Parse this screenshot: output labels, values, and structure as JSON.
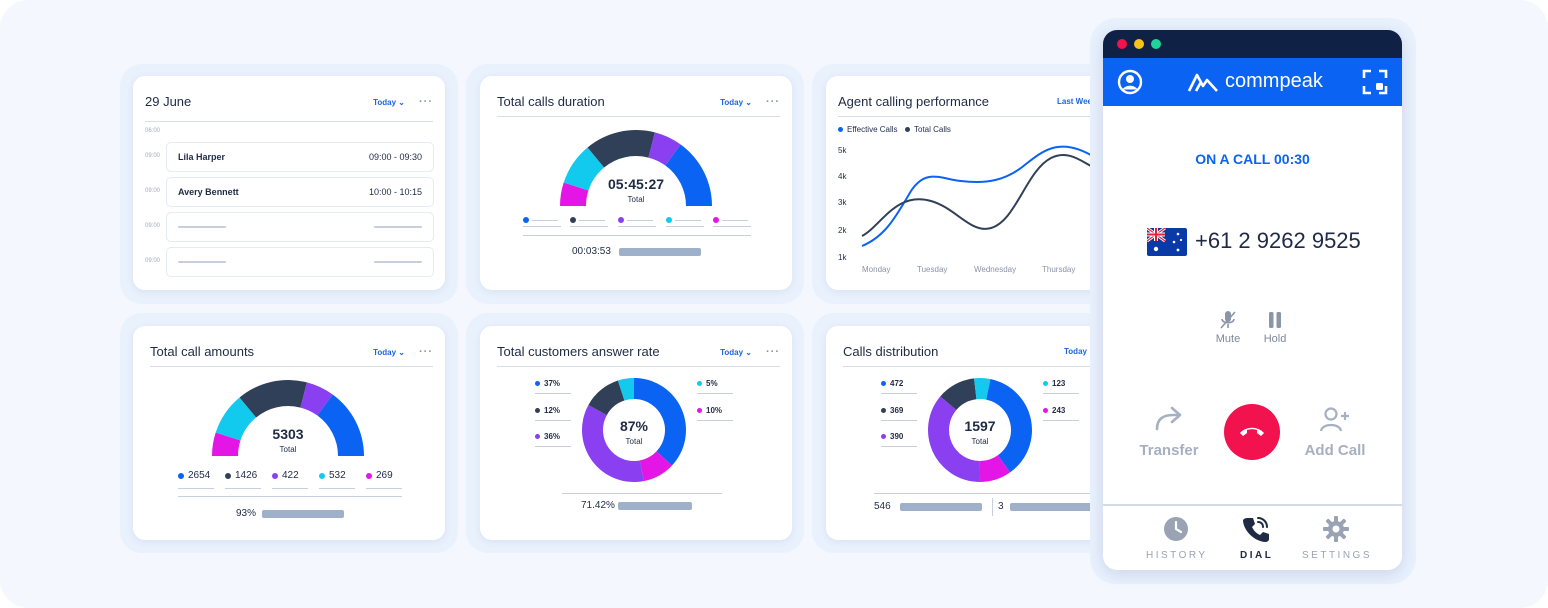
{
  "schedule": {
    "title": "29 June",
    "filter": "Today",
    "times": [
      "06:00",
      "09:00",
      "09:00",
      "09:00",
      "09:00"
    ],
    "rows": [
      {
        "name": "Lila Harper",
        "time": "09:00 - 09:30"
      },
      {
        "name": "Avery Bennett",
        "time": "10:00 - 10:15"
      }
    ]
  },
  "duration": {
    "title": "Total calls duration",
    "filter": "Today",
    "center_value": "05:45:27",
    "center_label": "Total",
    "footer_value": "00:03:53"
  },
  "performance": {
    "title": "Agent calling performance",
    "filter": "Last Week",
    "legend": [
      "Effective Calls",
      "Total Calls"
    ],
    "yticks": [
      "5k",
      "4k",
      "3k",
      "2k",
      "1k"
    ],
    "xticks": [
      "Monday",
      "Tuesday",
      "Wednesday",
      "Thursday"
    ]
  },
  "amounts": {
    "title": "Total call amounts",
    "filter": "Today",
    "center_value": "5303",
    "center_label": "Total",
    "legend": [
      "2654",
      "1426",
      "422",
      "532",
      "269"
    ],
    "footer_value": "93%"
  },
  "answer_rate": {
    "title": "Total customers answer rate",
    "filter": "Today",
    "center_value": "87%",
    "center_label": "Total",
    "left_labels": [
      "37%",
      "12%",
      "36%"
    ],
    "right_labels": [
      "5%",
      "10%"
    ],
    "footer_value": "71.42%"
  },
  "distribution": {
    "title": "Calls distribution",
    "filter": "Today",
    "center_value": "1597",
    "center_label": "Total",
    "left_labels": [
      "472",
      "369",
      "390"
    ],
    "right_labels": [
      "123",
      "243"
    ],
    "footer_left": "546",
    "footer_right": "3"
  },
  "phone": {
    "brand": "commpeak",
    "status": "ON A CALL 00:30",
    "number": "+61 2 9262 9525",
    "mute_label": "Mute",
    "hold_label": "Hold",
    "transfer_label": "Transfer",
    "add_call_label": "Add Call",
    "nav": {
      "history": "HISTORY",
      "dial": "DIAL",
      "settings": "SETTINGS"
    }
  },
  "colors": {
    "blue": "#0a63f2",
    "navy": "#2f4058",
    "purple": "#8a3ff0",
    "cyan": "#12c9ee",
    "magenta": "#e316e6",
    "hangup": "#f2124e"
  }
}
